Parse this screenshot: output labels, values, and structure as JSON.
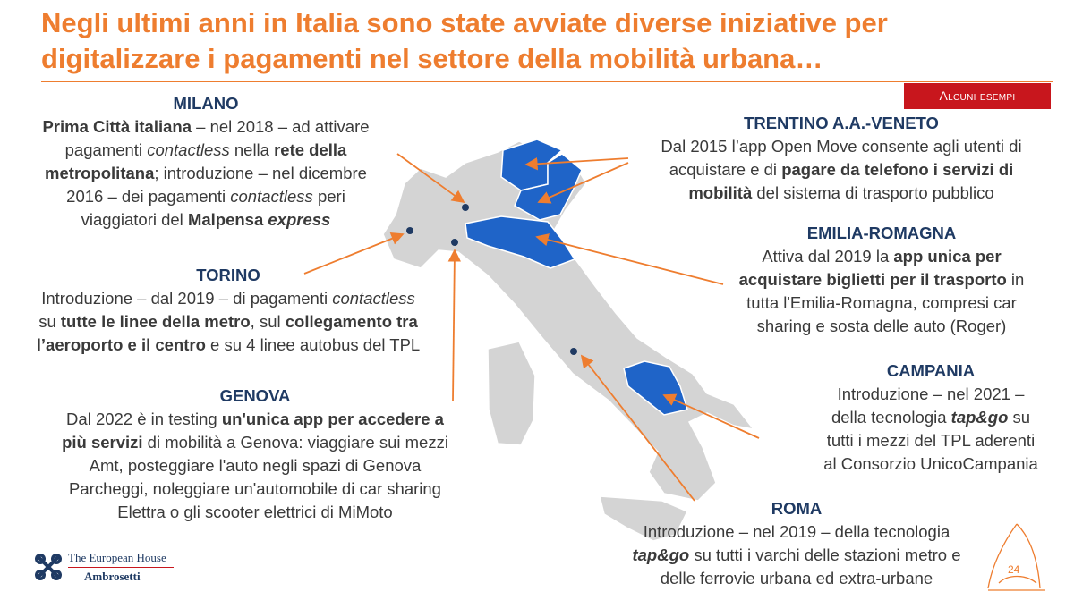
{
  "title": {
    "line1": "Negli ultimi anni in Italia sono state avviate diverse iniziative per",
    "line2": "digitalizzare i pagamenti nel settore della mobilità urbana…"
  },
  "tag": "Alcuni esempi",
  "colors": {
    "accent": "#ee7d2f",
    "heading": "#1f3a63",
    "highlight_region": "#1f64c8",
    "map_grey": "#d4d4d4",
    "tag_bg": "#c8161d"
  },
  "milano": {
    "heading": "MILANO",
    "l1a": "Prima Città italiana",
    "l1b": " – nel 2018 – ad attivare",
    "l2a": "pagamenti ",
    "l2b": "contactless",
    "l2c": " nella ",
    "l2d": "rete della",
    "l3a": "metropolitana",
    "l3b": "; introduzione – nel dicembre",
    "l4a": "2016 – dei pagamenti ",
    "l4b": "contactless",
    "l4c": "  peri",
    "l5a": "viaggiatori del ",
    "l5b": "Malpensa ",
    "l5c": "express"
  },
  "torino": {
    "heading": "TORINO",
    "l1a": "Introduzione – dal 2019 – di pagamenti ",
    "l1b": "contactless",
    "l2a": "su ",
    "l2b": "tutte le linee della metro",
    "l2c": ", sul ",
    "l2d": "collegamento tra",
    "l3a": "l’aeroporto e il centro",
    "l3b": " e su 4 linee autobus del TPL"
  },
  "genova": {
    "heading": "GENOVA",
    "l1a": "Dal 2022 è in testing ",
    "l1b": "un'unica app per accedere a",
    "l2a": "più servizi",
    "l2b": " di mobilità a Genova: viaggiare sui mezzi",
    "l3": "Amt, posteggiare l'auto negli spazi di Genova",
    "l4": "Parcheggi, noleggiare un'automobile di car sharing",
    "l5": "Elettra o gli scooter elettrici di MiMoto"
  },
  "trentino": {
    "heading": "TRENTINO A.A.-VENETO",
    "l1": "Dal 2015 l’app Open Move consente agli utenti di",
    "l2a": "acquistare e di ",
    "l2b": "pagare da telefono i servizi di",
    "l3a": "mobilità",
    "l3b": " del sistema di trasporto pubblico"
  },
  "emilia": {
    "heading": "EMILIA-ROMAGNA",
    "l1a": "Attiva dal 2019 la ",
    "l1b": "app unica per",
    "l2a": "acquistare biglietti per il trasporto",
    "l2b": " in",
    "l3": "tutta l'Emilia-Romagna, compresi car",
    "l4": "sharing e sosta delle auto (Roger)"
  },
  "campania": {
    "heading": "CAMPANIA",
    "l1": "Introduzione – nel 2021 –",
    "l2a": "della tecnologia ",
    "l2b": "tap&go",
    "l2c": " su",
    "l3": "tutti i mezzi del TPL aderenti",
    "l4": "al Consorzio UnicoCampania"
  },
  "roma": {
    "heading": "ROMA",
    "l1": "Introduzione – nel 2019 – della tecnologia",
    "l2a": "tap&go",
    "l2b": " su tutti i varchi delle stazioni metro e",
    "l3": "delle ferrovie urbana ed extra-urbane"
  },
  "logo": {
    "line1": "The European House",
    "line2": "Ambrosetti"
  },
  "page_number": "24"
}
